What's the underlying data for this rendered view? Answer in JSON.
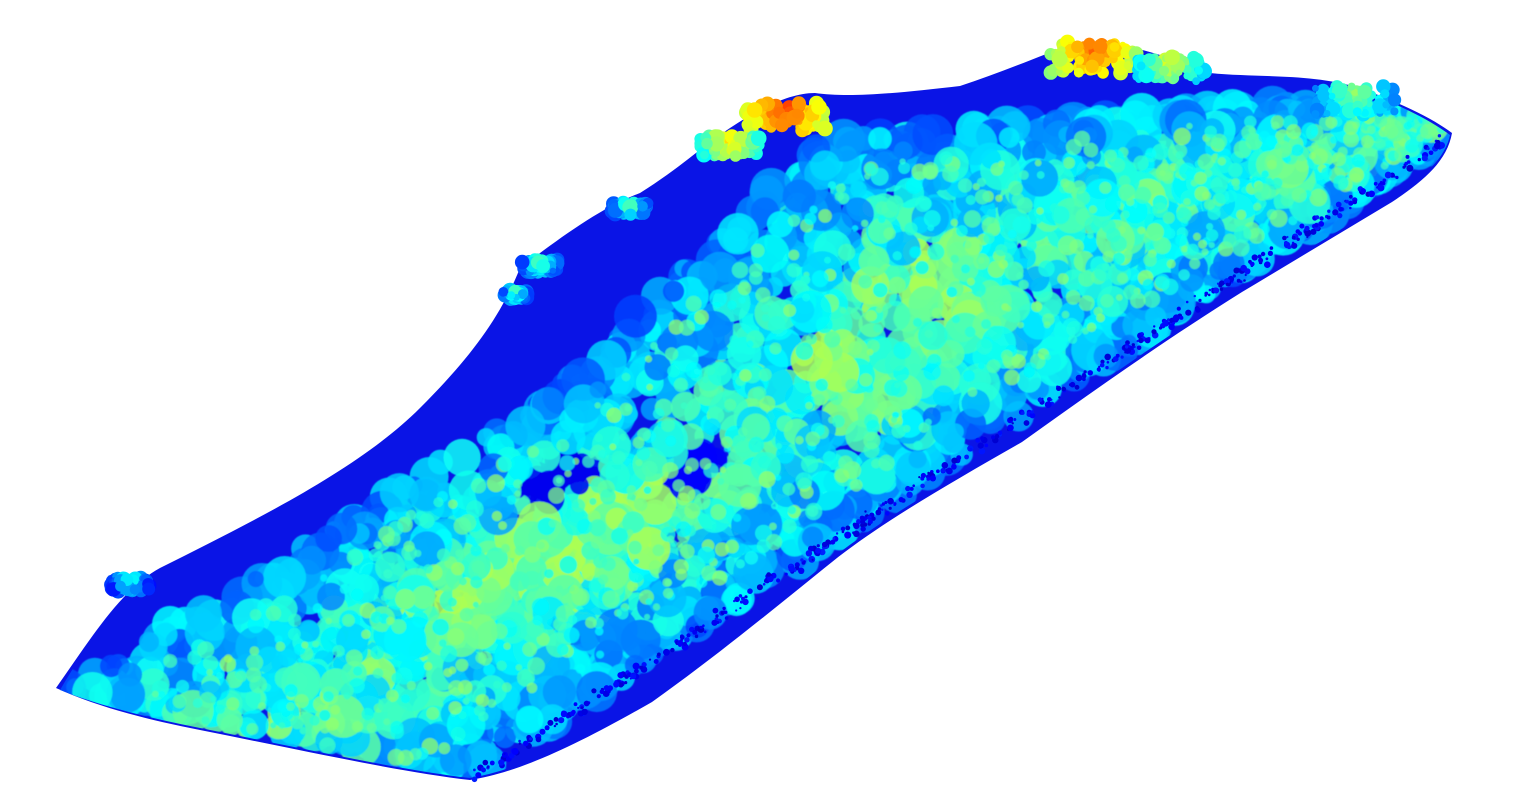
{
  "scene": {
    "background_color": "#ffffff",
    "subject": "lidar-point-cloud",
    "colormap": "jet",
    "colormap_stops": [
      "#00008f",
      "#0000ff",
      "#0080ff",
      "#00ffff",
      "#80ff80",
      "#ffff00",
      "#ff8000",
      "#ff0000"
    ]
  }
}
